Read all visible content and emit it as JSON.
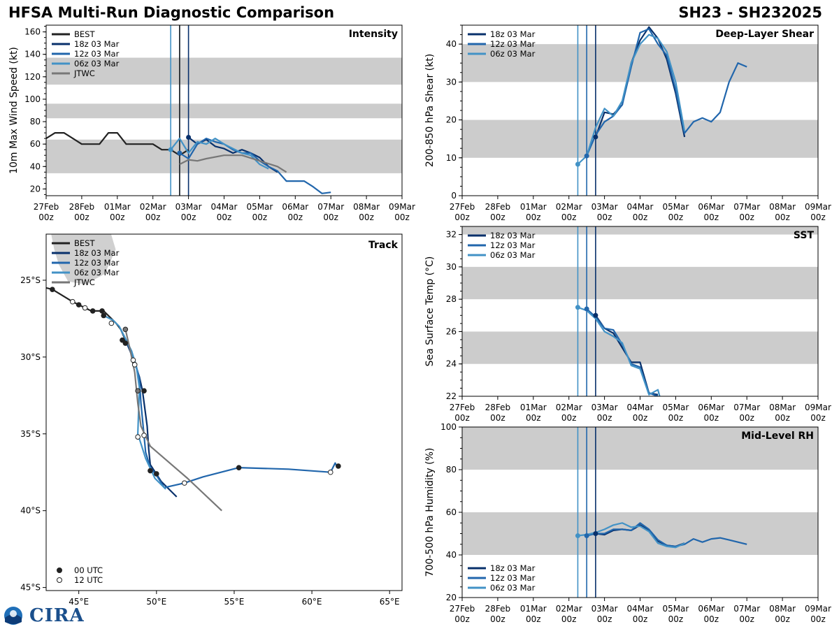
{
  "header": {
    "title_left": "HFSA Multi-Run Diagnostic Comparison",
    "title_right": "SH23 - SH232025"
  },
  "logo": {
    "text": "CIRA"
  },
  "colors": {
    "best": "#222222",
    "r18": "#08306b",
    "r12": "#2166ac",
    "r06": "#4292c6",
    "jtwc": "#777777",
    "band": "#cccccc",
    "land": "#d0d0d0"
  },
  "time_axis": {
    "day_labels": [
      "27Feb",
      "28Feb",
      "01Mar",
      "02Mar",
      "03Mar",
      "04Mar",
      "05Mar",
      "06Mar",
      "07Mar",
      "08Mar",
      "09Mar"
    ],
    "hour_label": "00z"
  },
  "chart_data": [
    {
      "id": "intensity",
      "type": "line",
      "title": "Intensity",
      "ylabel": "10m Max Wind Speed (kt)",
      "ylim": [
        14,
        166
      ],
      "yticks": [
        20,
        40,
        60,
        80,
        100,
        120,
        140,
        160
      ],
      "bands": [
        [
          34,
          64
        ],
        [
          83,
          96
        ],
        [
          113,
          137
        ]
      ],
      "vlines": [
        {
          "x": 3.5,
          "series": "r06"
        },
        {
          "x": 3.75,
          "series": "r12"
        },
        {
          "x": 4.0,
          "series": "r18"
        },
        {
          "x": 3.75,
          "series": "best"
        }
      ],
      "legend": [
        "BEST",
        "18z 03 Mar",
        "12z 03 Mar",
        "06z 03 Mar",
        "JTWC"
      ],
      "series": [
        {
          "key": "best",
          "name": "BEST",
          "x": [
            0,
            0.25,
            0.5,
            0.75,
            1,
            1.25,
            1.5,
            1.75,
            2,
            2.25,
            2.5,
            2.75,
            3,
            3.25,
            3.5,
            3.75,
            4
          ],
          "y": [
            65,
            70,
            70,
            65,
            60,
            60,
            60,
            70,
            70,
            60,
            60,
            60,
            60,
            55,
            55,
            50,
            55
          ]
        },
        {
          "key": "r18",
          "name": "18z 03 Mar",
          "x": [
            4,
            4.25,
            4.5,
            4.75,
            5,
            5.25,
            5.5,
            5.75,
            6,
            6.25,
            6.5
          ],
          "y": [
            66,
            60,
            64,
            58,
            56,
            52,
            55,
            52,
            48,
            40,
            35
          ]
        },
        {
          "key": "r12",
          "name": "12z 03 Mar",
          "x": [
            3.75,
            4,
            4.25,
            4.5,
            4.75,
            5,
            5.25,
            5.5,
            5.75,
            6,
            6.25,
            6.5,
            6.75,
            7,
            7.25,
            7.5,
            7.75,
            8
          ],
          "y": [
            52,
            47,
            60,
            65,
            62,
            60,
            55,
            52,
            52,
            45,
            40,
            36,
            27,
            27,
            27,
            22,
            16,
            17
          ]
        },
        {
          "key": "r06",
          "name": "06z 03 Mar",
          "x": [
            3.5,
            3.75,
            4,
            4.25,
            4.5,
            4.75,
            5,
            5.25,
            5.5,
            5.75,
            6,
            6.25
          ],
          "y": [
            55,
            65,
            52,
            62,
            60,
            65,
            60,
            56,
            52,
            50,
            42,
            38
          ]
        },
        {
          "key": "jtwc",
          "name": "JTWC",
          "x": [
            3.75,
            4,
            4.25,
            4.5,
            5,
            5.5,
            6,
            6.5,
            6.75
          ],
          "y": [
            42,
            46,
            45,
            47,
            50,
            50,
            45,
            40,
            35
          ]
        }
      ]
    },
    {
      "id": "shear",
      "type": "line",
      "title": "Deep-Layer Shear",
      "ylabel": "200-850 hPa Shear (kt)",
      "ylim": [
        0,
        45
      ],
      "yticks": [
        0,
        10,
        20,
        30,
        40
      ],
      "bands": [
        [
          10,
          20
        ],
        [
          30,
          40
        ]
      ],
      "vlines": [
        {
          "x": 3.25,
          "series": "r06"
        },
        {
          "x": 3.5,
          "series": "r12"
        },
        {
          "x": 3.75,
          "series": "r18"
        }
      ],
      "legend": [
        "18z 03 Mar",
        "12z 03 Mar",
        "06z 03 Mar"
      ],
      "series": [
        {
          "key": "r18",
          "name": "18z 03 Mar",
          "x": [
            3.75,
            4,
            4.25,
            4.5,
            4.75,
            5,
            5.25,
            5.5,
            5.75,
            6,
            6.25
          ],
          "y": [
            15.5,
            22,
            21.5,
            24,
            35,
            41,
            44.5,
            41.5,
            36,
            27,
            15.5
          ]
        },
        {
          "key": "r12",
          "name": "12z 03 Mar",
          "x": [
            3.5,
            3.75,
            4,
            4.25,
            4.5,
            4.75,
            5,
            5.25,
            5.5,
            5.75,
            6,
            6.25,
            6.5,
            6.75,
            7,
            7.25,
            7.5,
            7.75,
            8
          ],
          "y": [
            10.5,
            16,
            19.5,
            21,
            24,
            34,
            43,
            44,
            40,
            37,
            28,
            16.5,
            19.5,
            20.5,
            19.5,
            22,
            30,
            35,
            34
          ]
        },
        {
          "key": "r06",
          "name": "06z 03 Mar",
          "x": [
            3.25,
            3.5,
            3.75,
            4,
            4.25,
            4.5,
            4.75,
            5,
            5.25,
            5.5,
            5.75,
            6,
            6.25
          ],
          "y": [
            8.3,
            10.5,
            18,
            23,
            21,
            25,
            35,
            40,
            42.5,
            41.5,
            38,
            30,
            17
          ]
        }
      ]
    },
    {
      "id": "sst",
      "type": "line",
      "title": "SST",
      "ylabel": "Sea Surface Temp (°C)",
      "ylim": [
        22,
        32.5
      ],
      "yticks": [
        22,
        24,
        26,
        28,
        30,
        32
      ],
      "bands": [
        [
          24,
          26
        ],
        [
          28,
          30
        ],
        [
          32,
          32.5
        ]
      ],
      "vlines": [
        {
          "x": 3.25,
          "series": "r06"
        },
        {
          "x": 3.5,
          "series": "r12"
        },
        {
          "x": 3.75,
          "series": "r18"
        }
      ],
      "legend": [
        "18z 03 Mar",
        "12z 03 Mar",
        "06z 03 Mar"
      ],
      "series": [
        {
          "key": "r18",
          "name": "18z 03 Mar",
          "x": [
            3.75,
            4,
            4.25,
            4.5,
            4.75,
            5,
            5.25,
            5.5
          ],
          "y": [
            27.0,
            26.2,
            25.9,
            25.0,
            24.1,
            24.1,
            22.2,
            22.1
          ]
        },
        {
          "key": "r12",
          "name": "12z 03 Mar",
          "x": [
            3.5,
            3.75,
            4,
            4.25,
            4.5,
            4.75,
            5,
            5.25,
            5.5
          ],
          "y": [
            27.4,
            26.9,
            26.2,
            26.1,
            25.2,
            24.0,
            23.8,
            22.2,
            22.0
          ]
        },
        {
          "key": "r06",
          "name": "06z 03 Mar",
          "x": [
            3.25,
            3.5,
            3.75,
            4,
            4.25,
            4.5,
            4.75,
            5,
            5.25,
            5.5,
            5.55
          ],
          "y": [
            27.5,
            27.3,
            26.8,
            26.0,
            25.7,
            25.3,
            23.9,
            23.7,
            22.1,
            22.4,
            22.0
          ]
        }
      ]
    },
    {
      "id": "rh",
      "type": "line",
      "title": "Mid-Level RH",
      "ylabel": "700-500 hPa Humidity (%)",
      "ylim": [
        20,
        100
      ],
      "yticks": [
        20,
        40,
        60,
        80,
        100
      ],
      "bands": [
        [
          40,
          60
        ],
        [
          80,
          100
        ]
      ],
      "vlines": [
        {
          "x": 3.25,
          "series": "r06"
        },
        {
          "x": 3.5,
          "series": "r12"
        },
        {
          "x": 3.75,
          "series": "r18"
        }
      ],
      "legend": [
        "18z 03 Mar",
        "12z 03 Mar",
        "06z 03 Mar"
      ],
      "series": [
        {
          "key": "r18",
          "name": "18z 03 Mar",
          "x": [
            3.75,
            4,
            4.25,
            4.5,
            4.75,
            5,
            5.25,
            5.5,
            5.75,
            6,
            6.25
          ],
          "y": [
            50,
            49.5,
            51.5,
            52,
            51.5,
            54,
            51.5,
            46.5,
            44.5,
            44,
            45.5
          ]
        },
        {
          "key": "r12",
          "name": "12z 03 Mar",
          "x": [
            3.5,
            3.75,
            4,
            4.25,
            4.5,
            4.75,
            5,
            5.25,
            5.5,
            5.75,
            6,
            6.25,
            6.5,
            6.75,
            7,
            7.25,
            7.5,
            7.75,
            8
          ],
          "y": [
            49,
            50,
            50,
            52,
            52,
            51.5,
            55,
            52,
            47,
            44.5,
            44,
            45,
            47.5,
            46,
            47.5,
            48,
            47,
            46,
            45
          ]
        },
        {
          "key": "r06",
          "name": "06z 03 Mar",
          "x": [
            3.25,
            3.5,
            3.75,
            4,
            4.25,
            4.5,
            4.75,
            5,
            5.25,
            5.5,
            5.75,
            6,
            6.25
          ],
          "y": [
            49,
            49.5,
            50.5,
            52,
            54,
            55,
            53,
            53.5,
            51,
            45.5,
            44,
            43.5,
            45.5
          ]
        }
      ]
    },
    {
      "id": "track",
      "type": "scatter",
      "title": "Track",
      "xlabel": "Longitude",
      "ylabel": "Latitude",
      "xlim": [
        42.9,
        65.8
      ],
      "ylim": [
        -45.2,
        -22.0
      ],
      "xticks": [
        {
          "v": 45,
          "label": "45°E"
        },
        {
          "v": 50,
          "label": "50°E"
        },
        {
          "v": 55,
          "label": "55°E"
        },
        {
          "v": 60,
          "label": "60°E"
        },
        {
          "v": 65,
          "label": "65°E"
        }
      ],
      "yticks": [
        {
          "v": -25,
          "label": "25°S"
        },
        {
          "v": -30,
          "label": "30°S"
        },
        {
          "v": -35,
          "label": "35°S"
        },
        {
          "v": -40,
          "label": "40°S"
        },
        {
          "v": -45,
          "label": "45°S"
        }
      ],
      "legend": [
        "BEST",
        "18z 03 Mar",
        "12z 03 Mar",
        "06z 03 Mar",
        "JTWC"
      ],
      "marker_legend": [
        "00 UTC",
        "12 UTC"
      ],
      "land": [
        [
          43.2,
          -22.0
        ],
        [
          47.1,
          -22.0
        ],
        [
          47.4,
          -23.0
        ],
        [
          46.7,
          -24.6
        ],
        [
          45.4,
          -25.3
        ],
        [
          44.3,
          -25.1
        ],
        [
          43.7,
          -24.0
        ],
        [
          43.4,
          -23.0
        ]
      ],
      "series": [
        {
          "key": "best",
          "name": "BEST",
          "lon": [
            42.9,
            43.3,
            44.6,
            45.0,
            45.4,
            45.8,
            46.2,
            46.6,
            47.0,
            47.4,
            47.7,
            48.0
          ],
          "lat": [
            -25.5,
            -25.6,
            -26.4,
            -26.6,
            -26.8,
            -27.0,
            -27.0,
            -27.0,
            -27.4,
            -27.8,
            -28.2,
            -28.9
          ],
          "markers": [
            {
              "lon": 43.3,
              "lat": -25.6,
              "m": "00"
            },
            {
              "lon": 45.0,
              "lat": -26.6,
              "m": "00"
            },
            {
              "lon": 45.9,
              "lat": -27.0,
              "m": "00"
            },
            {
              "lon": 46.5,
              "lat": -27.0,
              "m": "00"
            },
            {
              "lon": 47.8,
              "lat": -28.9,
              "m": "00"
            }
          ]
        },
        {
          "key": "r18",
          "name": "18z 03 Mar",
          "lon": [
            48.0,
            48.3,
            48.6,
            48.9,
            49.1,
            49.4,
            49.5,
            49.6,
            50.3,
            51.3
          ],
          "lat": [
            -28.9,
            -29.6,
            -30.4,
            -31.3,
            -32.2,
            -34.5,
            -36.0,
            -37.0,
            -38.1,
            -39.1
          ],
          "markers": [
            {
              "lon": 49.2,
              "lat": -32.2,
              "m": "00"
            },
            {
              "lon": 50.0,
              "lat": -37.6,
              "m": "00"
            }
          ]
        },
        {
          "key": "r12",
          "name": "12z 03 Mar",
          "lon": [
            47.7,
            48.1,
            48.4,
            48.7,
            48.9,
            49.0,
            49.3,
            49.6,
            50.0,
            50.5,
            51.8,
            53.0,
            55.3,
            58.5,
            61.2,
            61.5,
            61.6
          ],
          "lat": [
            -28.2,
            -29.0,
            -29.8,
            -30.6,
            -31.4,
            -33.0,
            -36.2,
            -37.2,
            -37.7,
            -38.5,
            -38.2,
            -37.8,
            -37.2,
            -37.3,
            -37.5,
            -36.9,
            -37.1
          ],
          "markers": [
            {
              "lon": 49.6,
              "lat": -37.4,
              "m": "00"
            },
            {
              "lon": 55.3,
              "lat": -37.2,
              "m": "00"
            },
            {
              "lon": 61.7,
              "lat": -37.1,
              "m": "00"
            },
            {
              "lon": 51.8,
              "lat": -38.2,
              "m": "12"
            },
            {
              "lon": 61.2,
              "lat": -37.5,
              "m": "12"
            }
          ]
        },
        {
          "key": "r06",
          "name": "06z 03 Mar",
          "lon": [
            46.6,
            47.2,
            47.6,
            48.0,
            48.4,
            48.7,
            48.9,
            48.8,
            49.3,
            49.9,
            50.6
          ],
          "lat": [
            -27.3,
            -27.6,
            -28.0,
            -28.8,
            -29.6,
            -30.6,
            -32.0,
            -35.0,
            -36.6,
            -37.9,
            -38.6
          ],
          "markers": [
            {
              "lon": 46.6,
              "lat": -27.3,
              "m": "00"
            },
            {
              "lon": 48.0,
              "lat": -29.1,
              "m": "00"
            }
          ]
        },
        {
          "key": "jtwc",
          "name": "JTWC",
          "lon": [
            48.0,
            48.3,
            48.6,
            48.8,
            49.0,
            49.6,
            52.0,
            54.2
          ],
          "lat": [
            -28.2,
            -29.5,
            -31.0,
            -33.0,
            -34.5,
            -35.8,
            -37.9,
            -40.0
          ],
          "markers": [
            {
              "lon": 48.0,
              "lat": -28.2,
              "m": "00"
            },
            {
              "lon": 48.8,
              "lat": -32.2,
              "m": "00"
            }
          ]
        },
        {
          "key": "open",
          "name": "12 UTC positions",
          "lon": [],
          "lat": [],
          "markers": [
            {
              "lon": 44.6,
              "lat": -26.4,
              "m": "12"
            },
            {
              "lon": 45.4,
              "lat": -26.8,
              "m": "12"
            },
            {
              "lon": 47.1,
              "lat": -27.8,
              "m": "12"
            },
            {
              "lon": 48.5,
              "lat": -30.2,
              "m": "12"
            },
            {
              "lon": 48.6,
              "lat": -30.5,
              "m": "12"
            },
            {
              "lon": 48.8,
              "lat": -35.2,
              "m": "12"
            },
            {
              "lon": 49.2,
              "lat": -35.1,
              "m": "12"
            }
          ]
        }
      ]
    }
  ]
}
